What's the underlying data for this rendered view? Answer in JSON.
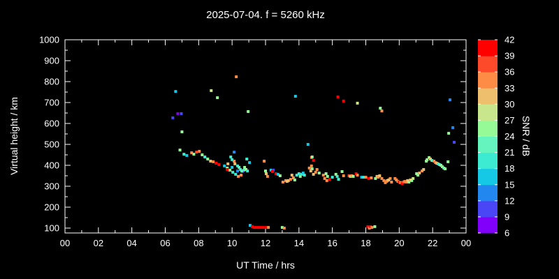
{
  "title": "2025-07-04. f = 5260 kHz",
  "chart_data": {
    "type": "scatter",
    "title": "2025-07-04. f = 5260 kHz",
    "xlabel": "UT Time / hrs",
    "ylabel": "Virtual height / km",
    "colorbar_label": "SNR / dB",
    "x_tick_labels": [
      "00",
      "02",
      "04",
      "06",
      "08",
      "10",
      "12",
      "14",
      "16",
      "18",
      "20",
      "22",
      "00"
    ],
    "x_tick_hours": [
      0,
      2,
      4,
      6,
      8,
      10,
      12,
      14,
      16,
      18,
      20,
      22,
      24
    ],
    "x_minor_hours": [
      1,
      3,
      5,
      7,
      9,
      11,
      13,
      15,
      17,
      19,
      21,
      23
    ],
    "x_range_hours": [
      0,
      24
    ],
    "y_ticks": [
      100,
      200,
      300,
      400,
      500,
      600,
      700,
      800,
      900,
      1000
    ],
    "y_minor_ticks": [
      150,
      250,
      350,
      450,
      550,
      650,
      750,
      850,
      950
    ],
    "ylim": [
      77,
      1000
    ],
    "grid": false,
    "background": "#000000",
    "axis_color": "#ffffff",
    "colorbar_ticks": [
      6,
      9,
      12,
      15,
      18,
      21,
      24,
      27,
      30,
      33,
      36,
      39,
      42
    ],
    "colorbar_colors_bottom_to_top": [
      "#8000fa",
      "#4b46f5",
      "#2387f0",
      "#14c8e6",
      "#3cebd2",
      "#64f5be",
      "#96fa96",
      "#c8e68c",
      "#eec06e",
      "#fc8c46",
      "#fc4a2a",
      "#ff0000"
    ],
    "colorbar_range": [
      6,
      42
    ],
    "points_format": [
      "ut_hour",
      "virtual_height_km",
      "snr_db"
    ],
    "points": [
      [
        6.45,
        627,
        11
      ],
      [
        6.62,
        753,
        17
      ],
      [
        6.75,
        647,
        7
      ],
      [
        6.96,
        647,
        11
      ],
      [
        7.0,
        560,
        26
      ],
      [
        8.75,
        757,
        29
      ],
      [
        9.12,
        723,
        26
      ],
      [
        10.25,
        823,
        35
      ],
      [
        10.96,
        657,
        26
      ],
      [
        13.79,
        730,
        17
      ],
      [
        16.33,
        727,
        41
      ],
      [
        16.67,
        707,
        41
      ],
      [
        17.5,
        697,
        29
      ],
      [
        18.87,
        673,
        26
      ],
      [
        18.96,
        660,
        35
      ],
      [
        14.54,
        500,
        17
      ],
      [
        23.04,
        713,
        14
      ],
      [
        23.21,
        580,
        14
      ],
      [
        22.96,
        553,
        26
      ],
      [
        23.29,
        510,
        11
      ],
      [
        6.88,
        473,
        26
      ],
      [
        7.12,
        453,
        20
      ],
      [
        7.29,
        447,
        17
      ],
      [
        7.58,
        460,
        35
      ],
      [
        7.71,
        453,
        26
      ],
      [
        7.87,
        463,
        38
      ],
      [
        8.04,
        467,
        35
      ],
      [
        8.21,
        450,
        26
      ],
      [
        8.37,
        440,
        20
      ],
      [
        8.54,
        430,
        26
      ],
      [
        8.71,
        420,
        32
      ],
      [
        8.87,
        417,
        35
      ],
      [
        9.04,
        410,
        41
      ],
      [
        9.21,
        403,
        41
      ],
      [
        9.54,
        397,
        17
      ],
      [
        9.71,
        387,
        26
      ],
      [
        9.87,
        377,
        26
      ],
      [
        10.04,
        367,
        20
      ],
      [
        10.21,
        357,
        20
      ],
      [
        10.37,
        347,
        35
      ],
      [
        10.54,
        353,
        35
      ],
      [
        10.12,
        463,
        14
      ],
      [
        9.92,
        440,
        20
      ],
      [
        10.0,
        427,
        20
      ],
      [
        9.75,
        407,
        32
      ],
      [
        9.71,
        380,
        41
      ],
      [
        10.0,
        390,
        17
      ],
      [
        10.33,
        373,
        14
      ],
      [
        10.62,
        370,
        7
      ],
      [
        10.71,
        377,
        20
      ],
      [
        10.12,
        420,
        35
      ],
      [
        10.17,
        407,
        32
      ],
      [
        10.33,
        397,
        20
      ],
      [
        10.42,
        390,
        23
      ],
      [
        10.5,
        380,
        20
      ],
      [
        10.58,
        373,
        23
      ],
      [
        10.75,
        390,
        26
      ],
      [
        10.83,
        380,
        26
      ],
      [
        10.92,
        373,
        20
      ],
      [
        10.88,
        430,
        20
      ],
      [
        11.04,
        413,
        17
      ],
      [
        11.92,
        420,
        35
      ],
      [
        12.33,
        377,
        17
      ],
      [
        12.46,
        377,
        11
      ],
      [
        12.42,
        370,
        41
      ],
      [
        12.0,
        373,
        26
      ],
      [
        12.04,
        360,
        32
      ],
      [
        12.12,
        347,
        35
      ],
      [
        12.62,
        360,
        41
      ],
      [
        12.75,
        357,
        17
      ],
      [
        12.87,
        350,
        26
      ],
      [
        13.04,
        320,
        35
      ],
      [
        13.21,
        327,
        35
      ],
      [
        13.29,
        323,
        32
      ],
      [
        13.37,
        327,
        32
      ],
      [
        13.5,
        333,
        35
      ],
      [
        13.58,
        353,
        32
      ],
      [
        13.67,
        340,
        35
      ],
      [
        13.75,
        330,
        26
      ],
      [
        13.87,
        353,
        20
      ],
      [
        14.0,
        360,
        20
      ],
      [
        14.08,
        347,
        26
      ],
      [
        14.17,
        357,
        20
      ],
      [
        14.25,
        363,
        17
      ],
      [
        14.33,
        353,
        20
      ],
      [
        14.62,
        387,
        35
      ],
      [
        14.75,
        437,
        38
      ],
      [
        14.79,
        440,
        26
      ],
      [
        14.87,
        423,
        41
      ],
      [
        14.75,
        397,
        35
      ],
      [
        14.79,
        383,
        26
      ],
      [
        14.71,
        373,
        32
      ],
      [
        15.08,
        380,
        35
      ],
      [
        15.0,
        367,
        35
      ],
      [
        14.87,
        357,
        32
      ],
      [
        15.21,
        363,
        26
      ],
      [
        15.46,
        353,
        35
      ],
      [
        15.62,
        360,
        26
      ],
      [
        15.71,
        347,
        26
      ],
      [
        15.54,
        337,
        35
      ],
      [
        15.67,
        327,
        35
      ],
      [
        15.83,
        333,
        41
      ],
      [
        16.0,
        343,
        20
      ],
      [
        16.21,
        357,
        26
      ],
      [
        16.29,
        347,
        20
      ],
      [
        16.58,
        370,
        26
      ],
      [
        16.67,
        350,
        35
      ],
      [
        16.37,
        333,
        20
      ],
      [
        17.0,
        350,
        38
      ],
      [
        17.08,
        347,
        29
      ],
      [
        17.17,
        350,
        35
      ],
      [
        17.25,
        347,
        26
      ],
      [
        17.42,
        360,
        41
      ],
      [
        17.5,
        353,
        35
      ],
      [
        17.75,
        343,
        17
      ],
      [
        17.87,
        343,
        20
      ],
      [
        18.0,
        343,
        35
      ],
      [
        18.17,
        337,
        41
      ],
      [
        18.33,
        340,
        35
      ],
      [
        18.58,
        337,
        26
      ],
      [
        18.67,
        347,
        32
      ],
      [
        18.75,
        343,
        35
      ],
      [
        18.83,
        350,
        32
      ],
      [
        19.17,
        317,
        35
      ],
      [
        19.29,
        327,
        32
      ],
      [
        19.46,
        337,
        35
      ],
      [
        18.96,
        337,
        35
      ],
      [
        19.08,
        327,
        35
      ],
      [
        19.25,
        323,
        35
      ],
      [
        19.37,
        330,
        32
      ],
      [
        19.54,
        320,
        35
      ],
      [
        19.75,
        337,
        35
      ],
      [
        19.83,
        330,
        35
      ],
      [
        19.92,
        323,
        35
      ],
      [
        20.0,
        320,
        41
      ],
      [
        20.08,
        317,
        35
      ],
      [
        20.17,
        313,
        41
      ],
      [
        20.25,
        320,
        38
      ],
      [
        20.33,
        323,
        35
      ],
      [
        20.42,
        320,
        35
      ],
      [
        20.5,
        327,
        32
      ],
      [
        20.58,
        320,
        26
      ],
      [
        20.67,
        330,
        32
      ],
      [
        20.75,
        327,
        26
      ],
      [
        20.83,
        337,
        29
      ],
      [
        21.04,
        360,
        26
      ],
      [
        21.12,
        353,
        26
      ],
      [
        21.21,
        363,
        32
      ],
      [
        21.37,
        373,
        35
      ],
      [
        21.46,
        380,
        32
      ],
      [
        21.62,
        420,
        26
      ],
      [
        21.67,
        427,
        26
      ],
      [
        21.79,
        437,
        26
      ],
      [
        21.87,
        430,
        32
      ],
      [
        21.96,
        423,
        23
      ],
      [
        22.08,
        420,
        35
      ],
      [
        22.17,
        413,
        35
      ],
      [
        22.25,
        410,
        32
      ],
      [
        22.33,
        407,
        20
      ],
      [
        22.42,
        403,
        23
      ],
      [
        22.5,
        400,
        26
      ],
      [
        22.58,
        393,
        26
      ],
      [
        22.67,
        387,
        23
      ],
      [
        22.75,
        383,
        26
      ],
      [
        22.92,
        417,
        26
      ],
      [
        11.08,
        113,
        17
      ],
      [
        11.21,
        107,
        41
      ],
      [
        11.33,
        103,
        41
      ],
      [
        11.46,
        103,
        41
      ],
      [
        11.58,
        103,
        41
      ],
      [
        11.71,
        103,
        41
      ],
      [
        11.87,
        103,
        41
      ],
      [
        12.04,
        103,
        41
      ],
      [
        12.17,
        103,
        35
      ],
      [
        13.0,
        103,
        26
      ],
      [
        13.12,
        100,
        35
      ],
      [
        18.12,
        107,
        41
      ],
      [
        18.21,
        100,
        35
      ],
      [
        18.29,
        107,
        41
      ],
      [
        18.37,
        103,
        35
      ],
      [
        18.54,
        107,
        26
      ]
    ]
  }
}
